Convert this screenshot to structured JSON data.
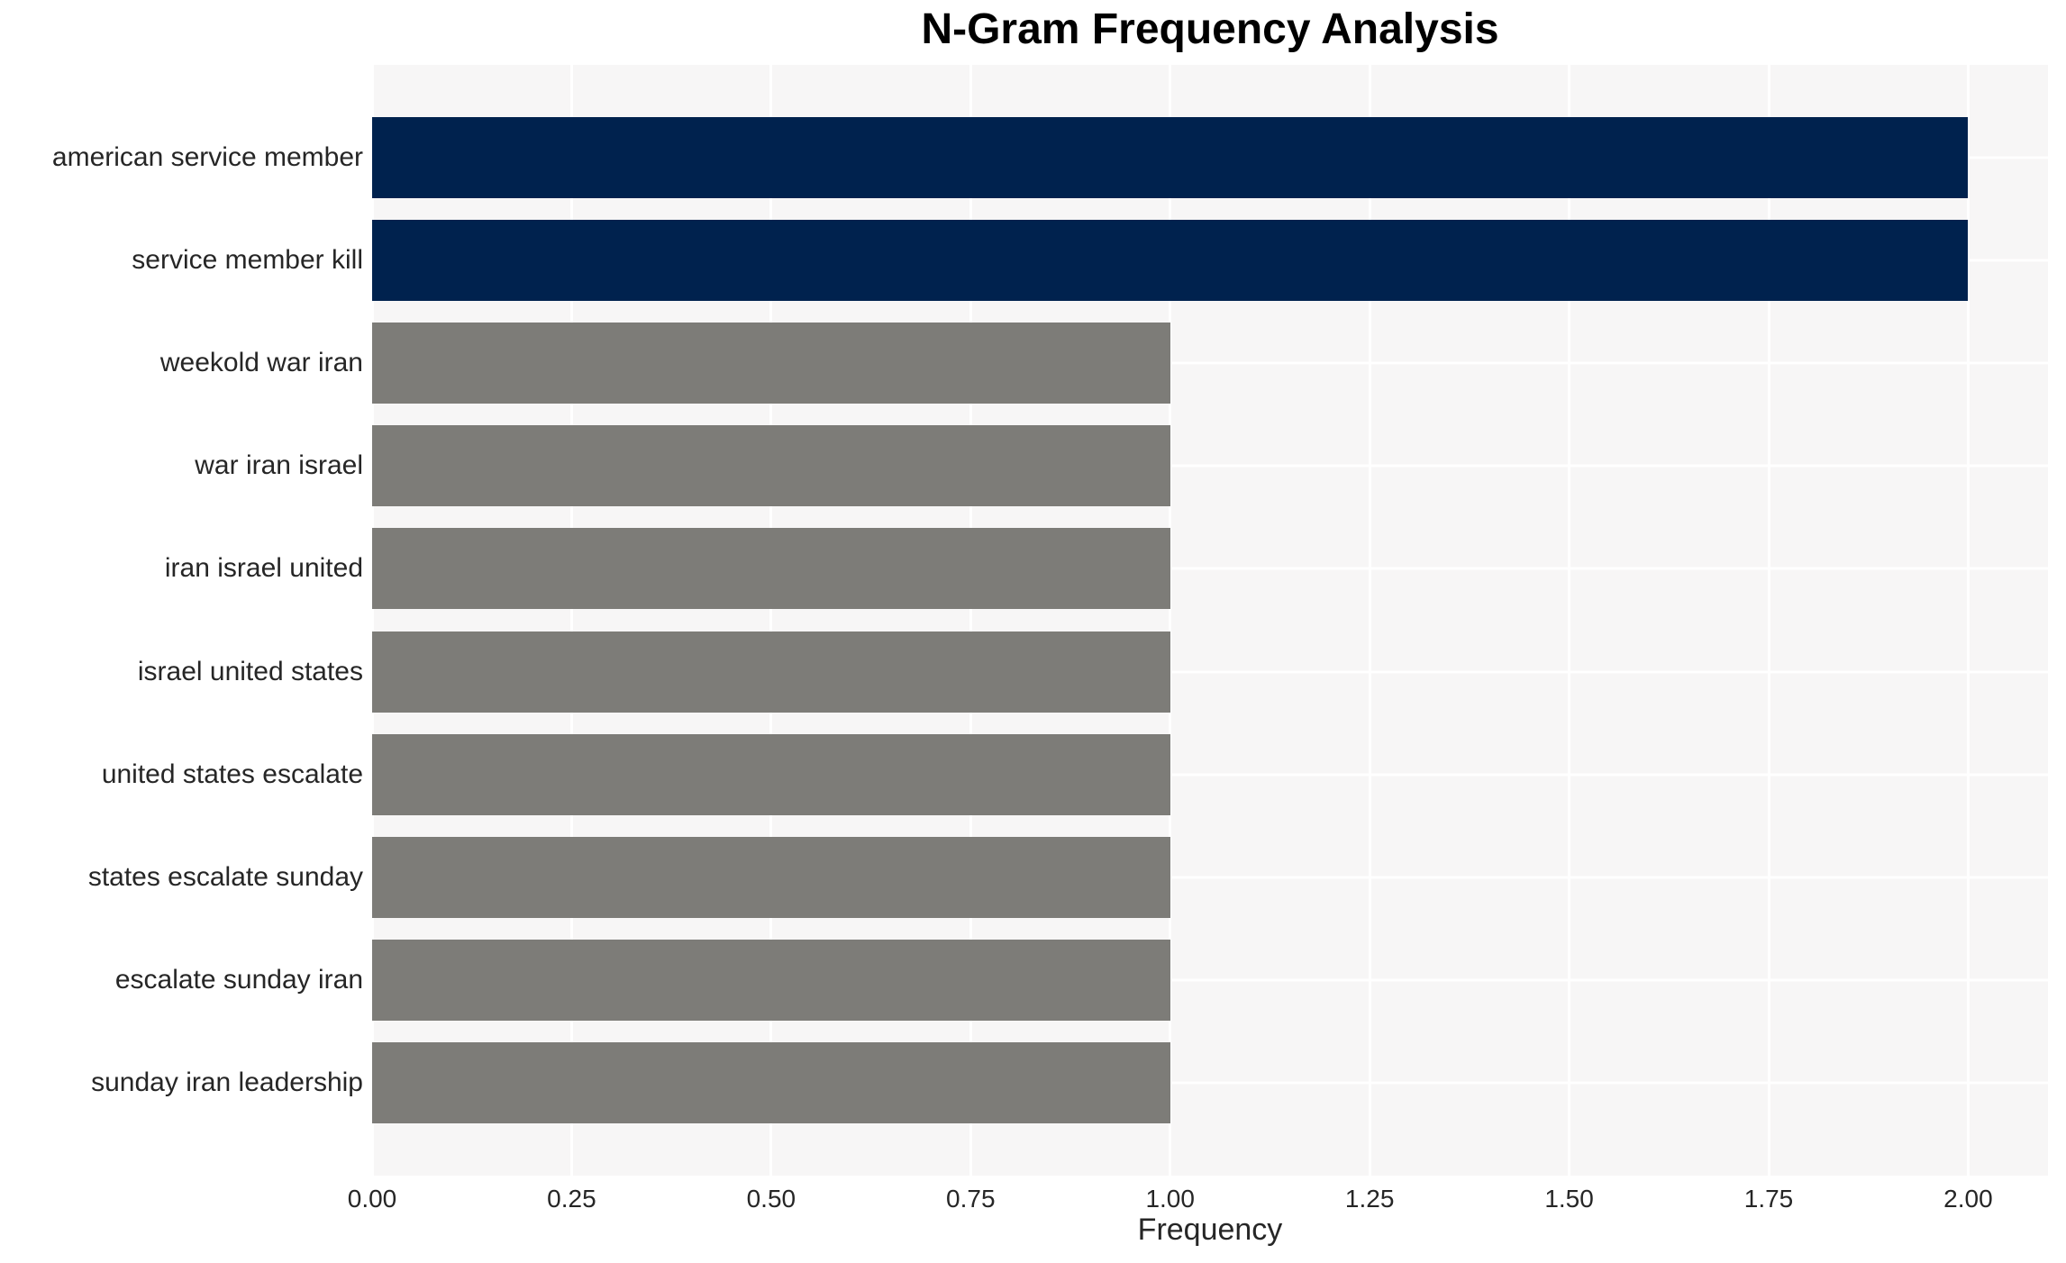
{
  "title": "N-Gram Frequency Analysis",
  "colors": {
    "figure_bg": "#ffffff",
    "plot_bg": "#f7f6f6",
    "grid": "#ffffff",
    "bar_high": "#00224e",
    "bar_low": "#7d7c78",
    "tick_text": "#262626",
    "title_text": "#000000"
  },
  "chart_data": {
    "type": "bar",
    "orientation": "horizontal",
    "title": "N-Gram Frequency Analysis",
    "xlabel": "Frequency",
    "ylabel": "",
    "categories": [
      "american service member",
      "service member kill",
      "weekold war iran",
      "war iran israel",
      "iran israel united",
      "israel united states",
      "united states escalate",
      "states escalate sunday",
      "escalate sunday iran",
      "sunday iran leadership"
    ],
    "values": [
      2,
      2,
      1,
      1,
      1,
      1,
      1,
      1,
      1,
      1
    ],
    "bar_colors": [
      "#00224e",
      "#00224e",
      "#7d7c78",
      "#7d7c78",
      "#7d7c78",
      "#7d7c78",
      "#7d7c78",
      "#7d7c78",
      "#7d7c78",
      "#7d7c78"
    ],
    "xlim": [
      0,
      2.1
    ],
    "xticks": [
      "0.00",
      "0.25",
      "0.50",
      "0.75",
      "1.00",
      "1.25",
      "1.50",
      "1.75",
      "2.00"
    ],
    "xtick_values": [
      0,
      0.25,
      0.5,
      0.75,
      1.0,
      1.25,
      1.5,
      1.75,
      2.0
    ],
    "grid": true,
    "grid_style": "white lines under bars, vertical at ticks and horizontal at bar centers",
    "legend": false,
    "data_labels": false
  }
}
